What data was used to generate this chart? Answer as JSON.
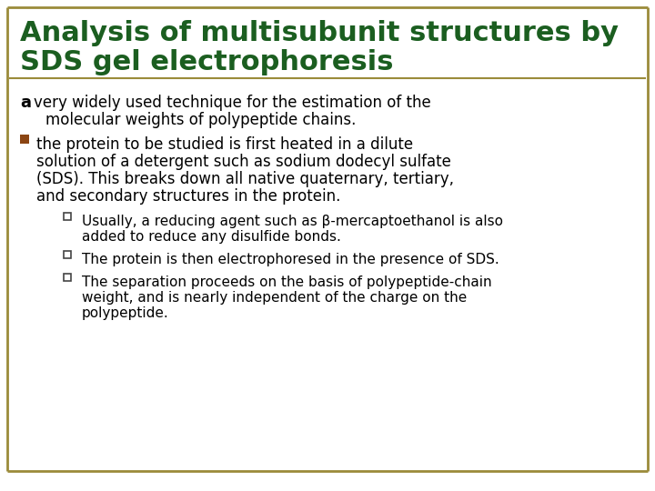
{
  "background_color": "#ffffff",
  "border_color": "#9B8B3A",
  "title_line1": "Analysis of multisubunit structures by",
  "title_line2": "SDS gel electrophoresis",
  "title_color": "#1B5E20",
  "title_fontsize": 22,
  "body_fontsize": 12,
  "small_fontsize": 11,
  "text_color": "#000000",
  "bullet_color": "#8B4513",
  "sub_bullet_color": "#444444",
  "sub1_line1": "Usually, a reducing agent such as β-mercaptoethanol is also",
  "sub1_line2": "added to reduce any disulfide bonds.",
  "sub2": "The protein is then electrophoresed in the presence of SDS.",
  "sub3_line1": "The separation proceeds on the basis of polypeptide-chain",
  "sub3_line2": "weight, and is nearly independent of the charge on the",
  "sub3_line3": "polypeptide."
}
